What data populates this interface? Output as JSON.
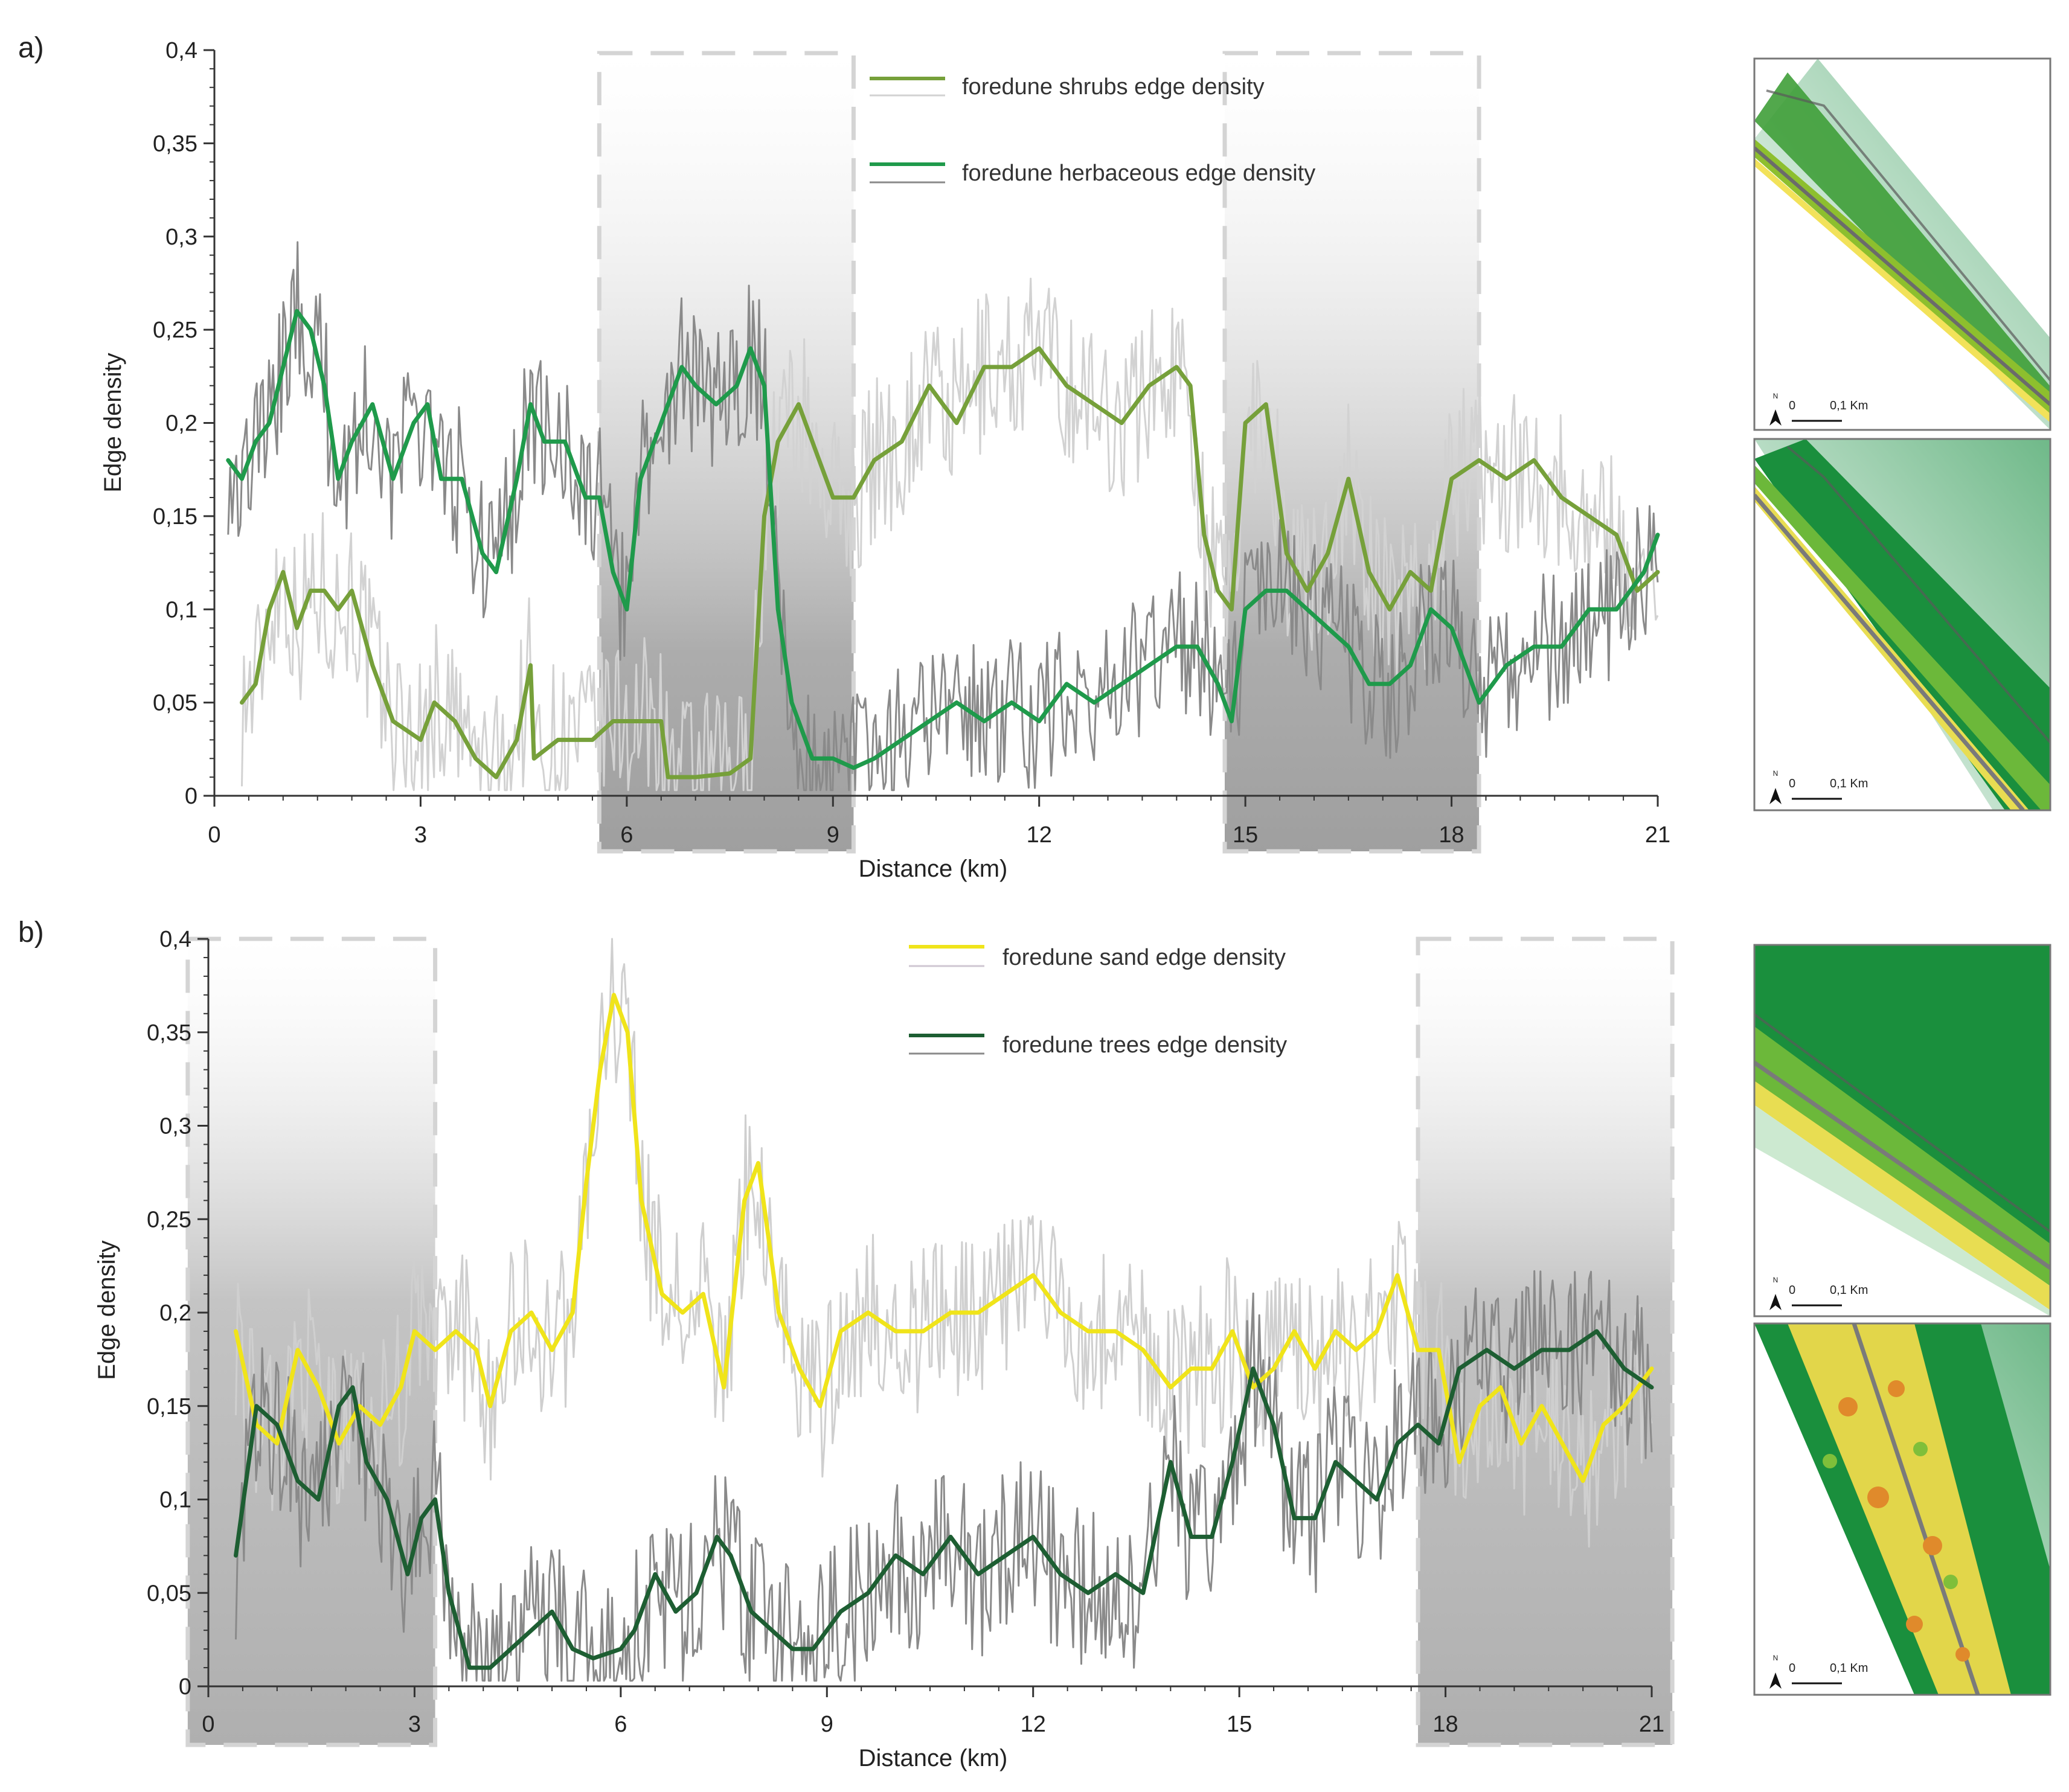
{
  "colors": {
    "shrubs": "#76a03a",
    "shrubs_raw": "#d2d2d2",
    "herbaceous": "#1f9a4b",
    "herbaceous_raw": "#8a8a8a",
    "sand": "#f0e41a",
    "sand_raw": "#cfcfcf",
    "trees": "#1d5e32",
    "trees_raw": "#8a8a8a",
    "shade": "#a9a9a9",
    "dash": "#d4d4d4",
    "axis": "#333333"
  },
  "chart_data": [
    {
      "panel": "a)",
      "type": "line",
      "xlabel": "Distance (km)",
      "ylabel": "Edge density",
      "xlim": [
        0,
        21
      ],
      "ylim": [
        0,
        0.4
      ],
      "xticks": [
        0,
        3,
        6,
        9,
        12,
        15,
        18,
        21
      ],
      "xtick_labels": [
        "0",
        "3",
        "6",
        "9",
        "12",
        "15",
        "18",
        "21"
      ],
      "yticks": [
        0,
        0.05,
        0.1,
        0.15,
        0.2,
        0.25,
        0.3,
        0.35,
        0.4
      ],
      "ytick_labels": [
        "0",
        "0,05",
        "0,1",
        "0,15",
        "0,2",
        "0,25",
        "0,3",
        "0,35",
        "0,4"
      ],
      "shaded_ranges_km": [
        [
          5.6,
          9.3
        ],
        [
          14.7,
          18.4
        ]
      ],
      "legend": [
        {
          "label": "foredune shrubs edge density",
          "series": "shrubs"
        },
        {
          "label": "foredune herbaceous edge density",
          "series": "herbaceous"
        }
      ],
      "series": [
        {
          "key": "shrubs",
          "name": "foredune shrubs edge density",
          "color_key": "shrubs",
          "raw_color_key": "shrubs_raw",
          "noise": 0.045,
          "x": [
            0.4,
            0.6,
            0.8,
            1.0,
            1.2,
            1.4,
            1.6,
            1.8,
            2.0,
            2.3,
            2.6,
            3.0,
            3.2,
            3.5,
            3.8,
            4.1,
            4.4,
            4.6,
            4.65,
            5.0,
            5.5,
            5.8,
            6.0,
            6.5,
            6.6,
            7.0,
            7.5,
            7.8,
            8.0,
            8.2,
            8.5,
            8.8,
            9.0,
            9.3,
            9.6,
            10.0,
            10.4,
            10.8,
            11.2,
            11.6,
            12.0,
            12.4,
            12.8,
            13.2,
            13.6,
            14.0,
            14.2,
            14.4,
            14.6,
            14.8,
            15.0,
            15.3,
            15.6,
            15.9,
            16.2,
            16.5,
            16.8,
            17.1,
            17.4,
            17.7,
            18.0,
            18.4,
            18.8,
            19.2,
            19.6,
            20.0,
            20.4,
            20.7,
            21.0
          ],
          "values": [
            0.05,
            0.06,
            0.1,
            0.12,
            0.09,
            0.11,
            0.11,
            0.1,
            0.11,
            0.07,
            0.04,
            0.03,
            0.05,
            0.04,
            0.02,
            0.01,
            0.03,
            0.07,
            0.02,
            0.03,
            0.03,
            0.04,
            0.04,
            0.04,
            0.01,
            0.01,
            0.012,
            0.02,
            0.15,
            0.19,
            0.21,
            0.18,
            0.16,
            0.16,
            0.18,
            0.19,
            0.22,
            0.2,
            0.23,
            0.23,
            0.24,
            0.22,
            0.21,
            0.2,
            0.22,
            0.23,
            0.22,
            0.14,
            0.11,
            0.1,
            0.2,
            0.21,
            0.13,
            0.11,
            0.13,
            0.17,
            0.12,
            0.1,
            0.12,
            0.11,
            0.17,
            0.18,
            0.17,
            0.18,
            0.16,
            0.15,
            0.14,
            0.11,
            0.12
          ]
        },
        {
          "key": "herbaceous",
          "name": "foredune herbaceous edge density",
          "color_key": "herbaceous",
          "raw_color_key": "herbaceous_raw",
          "noise": 0.04,
          "x": [
            0.2,
            0.4,
            0.6,
            0.8,
            1.0,
            1.2,
            1.4,
            1.6,
            1.8,
            2.0,
            2.3,
            2.6,
            2.9,
            3.1,
            3.3,
            3.6,
            3.9,
            4.1,
            4.4,
            4.6,
            4.8,
            5.1,
            5.4,
            5.6,
            5.8,
            6.0,
            6.2,
            6.5,
            6.8,
            7.0,
            7.3,
            7.6,
            7.8,
            8.0,
            8.2,
            8.4,
            8.7,
            9.0,
            9.3,
            9.6,
            10.0,
            10.4,
            10.8,
            11.2,
            11.6,
            12.0,
            12.4,
            12.8,
            13.2,
            13.6,
            14.0,
            14.3,
            14.6,
            14.8,
            15.0,
            15.3,
            15.6,
            15.9,
            16.2,
            16.5,
            16.8,
            17.1,
            17.4,
            17.7,
            18.0,
            18.4,
            18.8,
            19.2,
            19.6,
            20.0,
            20.4,
            20.8,
            21.0
          ],
          "values": [
            0.18,
            0.17,
            0.19,
            0.2,
            0.23,
            0.26,
            0.25,
            0.22,
            0.17,
            0.19,
            0.21,
            0.17,
            0.2,
            0.21,
            0.17,
            0.17,
            0.13,
            0.12,
            0.17,
            0.21,
            0.19,
            0.19,
            0.16,
            0.16,
            0.12,
            0.1,
            0.17,
            0.2,
            0.23,
            0.22,
            0.21,
            0.22,
            0.24,
            0.22,
            0.1,
            0.05,
            0.02,
            0.02,
            0.015,
            0.02,
            0.03,
            0.04,
            0.05,
            0.04,
            0.05,
            0.04,
            0.06,
            0.05,
            0.06,
            0.07,
            0.08,
            0.08,
            0.06,
            0.04,
            0.1,
            0.11,
            0.11,
            0.1,
            0.09,
            0.08,
            0.06,
            0.06,
            0.07,
            0.1,
            0.09,
            0.05,
            0.07,
            0.08,
            0.08,
            0.1,
            0.1,
            0.12,
            0.14
          ]
        }
      ]
    },
    {
      "panel": "b)",
      "type": "line",
      "xlabel": "Distance (km)",
      "ylabel": "Edge density",
      "xlim": [
        0,
        21
      ],
      "ylim": [
        0,
        0.4
      ],
      "xticks": [
        0,
        3,
        6,
        9,
        12,
        15,
        18,
        21
      ],
      "xtick_labels": [
        "0",
        "3",
        "6",
        "9",
        "12",
        "15",
        "18",
        "21"
      ],
      "yticks": [
        0,
        0.05,
        0.1,
        0.15,
        0.2,
        0.25,
        0.3,
        0.35,
        0.4
      ],
      "ytick_labels": [
        "0",
        "0,05",
        "0,1",
        "0,15",
        "0,2",
        "0,25",
        "0,3",
        "0,35",
        "0,4"
      ],
      "shaded_ranges_km": [
        [
          -0.3,
          3.3
        ],
        [
          17.6,
          21.3
        ]
      ],
      "legend": [
        {
          "label": "foredune sand edge density",
          "series": "sand"
        },
        {
          "label": "foredune trees edge density",
          "series": "trees"
        }
      ],
      "series": [
        {
          "key": "sand",
          "name": "foredune sand edge density",
          "color_key": "sand",
          "raw_color_key": "sand_raw",
          "noise": 0.045,
          "x": [
            0.4,
            0.7,
            1.0,
            1.3,
            1.6,
            1.9,
            2.2,
            2.5,
            2.8,
            3.0,
            3.3,
            3.6,
            3.9,
            4.1,
            4.4,
            4.7,
            5.0,
            5.3,
            5.5,
            5.7,
            5.9,
            6.1,
            6.3,
            6.6,
            6.9,
            7.2,
            7.5,
            7.8,
            8.0,
            8.3,
            8.6,
            8.9,
            9.2,
            9.6,
            10.0,
            10.4,
            10.8,
            11.2,
            11.6,
            12.0,
            12.4,
            12.8,
            13.2,
            13.6,
            14.0,
            14.3,
            14.6,
            14.9,
            15.2,
            15.5,
            15.8,
            16.1,
            16.4,
            16.7,
            17.0,
            17.3,
            17.6,
            17.9,
            18.2,
            18.5,
            18.8,
            19.1,
            19.4,
            19.7,
            20.0,
            20.3,
            20.6,
            21.0
          ],
          "values": [
            0.19,
            0.14,
            0.13,
            0.18,
            0.16,
            0.13,
            0.15,
            0.14,
            0.16,
            0.19,
            0.18,
            0.19,
            0.18,
            0.15,
            0.19,
            0.2,
            0.18,
            0.2,
            0.27,
            0.33,
            0.37,
            0.35,
            0.26,
            0.21,
            0.2,
            0.21,
            0.16,
            0.26,
            0.28,
            0.2,
            0.17,
            0.15,
            0.19,
            0.2,
            0.19,
            0.19,
            0.2,
            0.2,
            0.21,
            0.22,
            0.2,
            0.19,
            0.19,
            0.18,
            0.16,
            0.17,
            0.17,
            0.19,
            0.16,
            0.17,
            0.19,
            0.17,
            0.19,
            0.18,
            0.19,
            0.22,
            0.18,
            0.18,
            0.12,
            0.15,
            0.16,
            0.13,
            0.15,
            0.13,
            0.11,
            0.14,
            0.15,
            0.17
          ]
        },
        {
          "key": "trees",
          "name": "foredune trees edge density",
          "color_key": "trees",
          "raw_color_key": "trees_raw",
          "noise": 0.045,
          "x": [
            0.4,
            0.7,
            1.0,
            1.3,
            1.6,
            1.9,
            2.1,
            2.3,
            2.6,
            2.9,
            3.1,
            3.3,
            3.5,
            3.8,
            4.1,
            4.4,
            4.7,
            5.0,
            5.3,
            5.6,
            6.0,
            6.2,
            6.5,
            6.8,
            7.1,
            7.4,
            7.6,
            7.9,
            8.2,
            8.5,
            8.8,
            9.2,
            9.6,
            10.0,
            10.4,
            10.8,
            11.2,
            11.6,
            12.0,
            12.4,
            12.8,
            13.2,
            13.6,
            14.0,
            14.3,
            14.6,
            14.9,
            15.2,
            15.5,
            15.8,
            16.1,
            16.4,
            16.7,
            17.0,
            17.3,
            17.6,
            17.9,
            18.2,
            18.6,
            19.0,
            19.4,
            19.8,
            20.2,
            20.6,
            21.0
          ],
          "values": [
            0.07,
            0.15,
            0.14,
            0.11,
            0.1,
            0.15,
            0.16,
            0.12,
            0.1,
            0.06,
            0.09,
            0.1,
            0.05,
            0.01,
            0.01,
            0.02,
            0.03,
            0.04,
            0.02,
            0.015,
            0.02,
            0.03,
            0.06,
            0.04,
            0.05,
            0.08,
            0.07,
            0.04,
            0.03,
            0.02,
            0.02,
            0.04,
            0.05,
            0.07,
            0.06,
            0.08,
            0.06,
            0.07,
            0.08,
            0.06,
            0.05,
            0.06,
            0.05,
            0.12,
            0.08,
            0.08,
            0.12,
            0.17,
            0.14,
            0.09,
            0.09,
            0.12,
            0.11,
            0.1,
            0.13,
            0.14,
            0.13,
            0.17,
            0.18,
            0.17,
            0.18,
            0.18,
            0.19,
            0.17,
            0.16
          ]
        }
      ]
    }
  ],
  "maps": {
    "scale_zero": "0",
    "scale_label": "0,1 Km",
    "north_label": "N"
  }
}
